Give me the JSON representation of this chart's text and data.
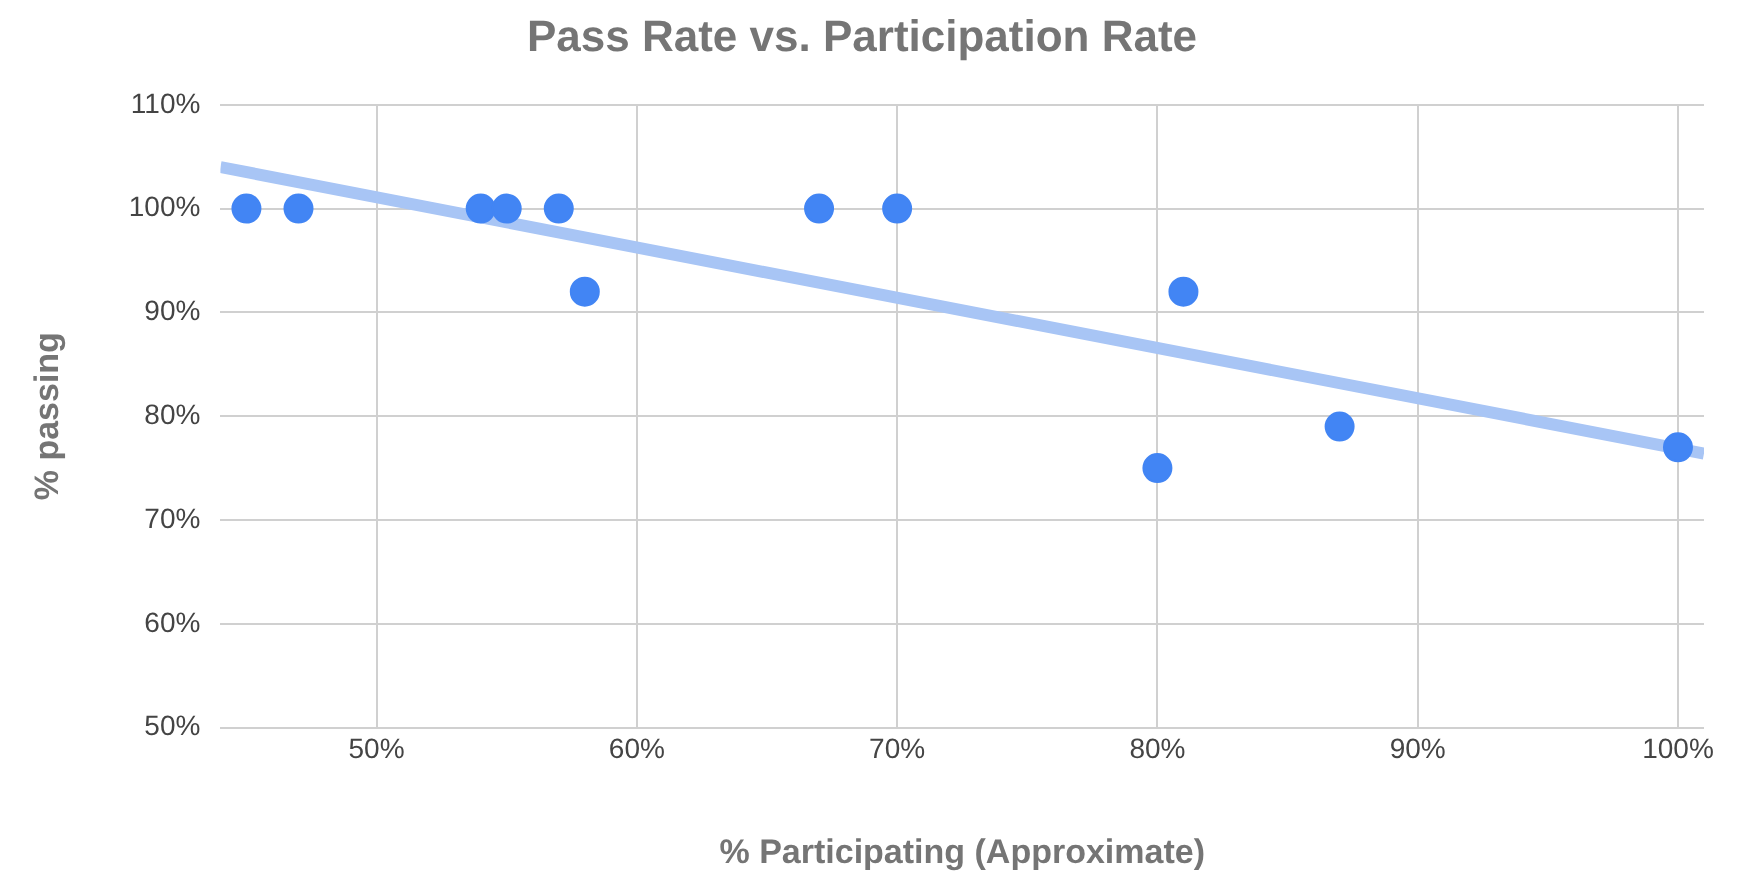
{
  "chart_data": {
    "type": "scatter",
    "title": "Pass Rate vs. Participation Rate",
    "xlabel": "% Participating (Approximate)",
    "ylabel": "% passing",
    "series": [
      {
        "type": "scatter",
        "marker": "circle",
        "color": "#4285f4",
        "x": [
          45,
          47,
          54,
          55,
          57,
          58,
          67,
          70,
          80,
          81,
          87,
          100
        ],
        "values": [
          100,
          100,
          100,
          100,
          100,
          92,
          100,
          100,
          75,
          92,
          79,
          77
        ]
      },
      {
        "type": "line",
        "marker": "none",
        "color": "#a8c5f5",
        "x": [
          44,
          101
        ],
        "values": [
          104,
          76.4
        ]
      }
    ],
    "xlim": [
      44,
      101
    ],
    "xticks": [
      {
        "value": 50,
        "label": "50%"
      },
      {
        "value": 60,
        "label": "60%"
      },
      {
        "value": 70,
        "label": "70%"
      },
      {
        "value": 80,
        "label": "80%"
      },
      {
        "value": 90,
        "label": "90%"
      },
      {
        "value": 100,
        "label": "100%"
      }
    ],
    "ylim": [
      50,
      110
    ],
    "yticks": [
      {
        "value": 50,
        "label": "50%"
      },
      {
        "value": 60,
        "label": "60%"
      },
      {
        "value": 70,
        "label": "70%"
      },
      {
        "value": 80,
        "label": "80%"
      },
      {
        "value": 90,
        "label": "90%"
      },
      {
        "value": 100,
        "label": "100%"
      },
      {
        "value": 110,
        "label": "110%"
      }
    ],
    "grid": true,
    "legend": false
  }
}
